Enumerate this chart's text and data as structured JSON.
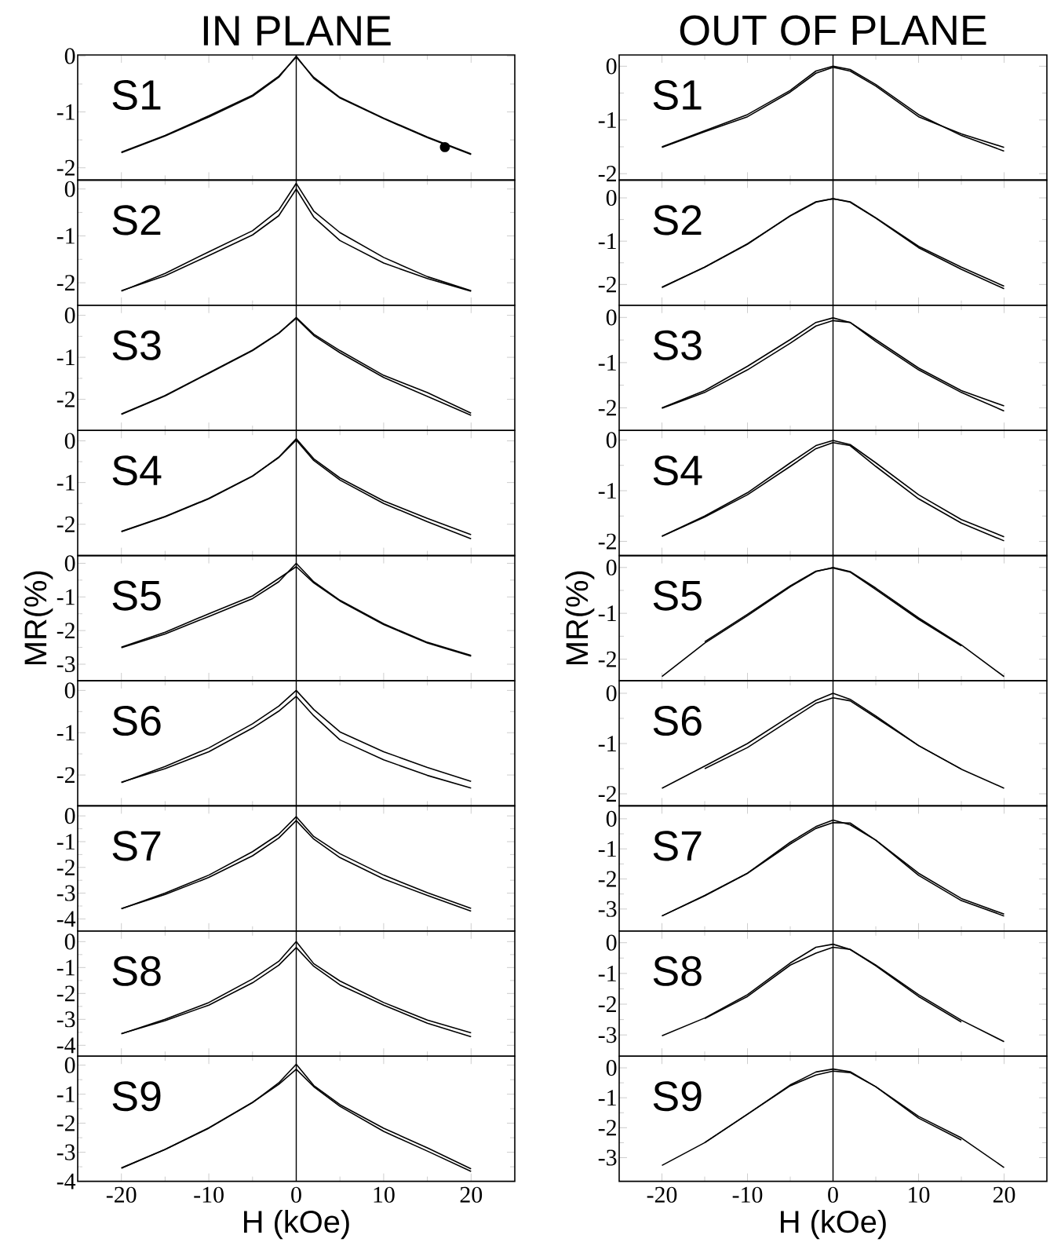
{
  "chart_data": [
    {
      "type": "line",
      "title": "IN PLANE",
      "annotations": [
        "S1"
      ],
      "x": [
        -20,
        -15,
        -10,
        -5,
        -2,
        0,
        2,
        5,
        10,
        15,
        20
      ],
      "xlim": [
        -25,
        25
      ],
      "xticks": [
        -20,
        -10,
        0,
        10,
        20
      ],
      "ylim": [
        -2.22,
        0.02
      ],
      "yticks": [
        -2,
        -1,
        0
      ],
      "tick_labels": "y",
      "line_style": "solid",
      "marker": "none",
      "ref_lines": [
        {
          "axis": "x",
          "value": 0
        }
      ],
      "series": [
        {
          "color": "#000000",
          "values": [
            -1.73,
            -1.43,
            -1.09,
            -0.72,
            -0.38,
            0,
            -0.4,
            -0.75,
            -1.12,
            -1.46,
            -1.76
          ]
        },
        {
          "color": "#000000",
          "values": [
            -1.72,
            -1.42,
            -1.07,
            -0.7,
            -0.36,
            -0.02,
            -0.38,
            -0.74,
            -1.11,
            -1.45,
            -1.75
          ]
        },
        {
          "type": "scatter",
          "marker": "circle",
          "color": "#000000",
          "x": [
            17
          ],
          "values": [
            -1.63
          ]
        }
      ]
    },
    {
      "type": "line",
      "annotations": [
        "S2"
      ],
      "x": [
        -20,
        -15,
        -10,
        -5,
        -2,
        0,
        2,
        5,
        10,
        15,
        20
      ],
      "xlim": [
        -25,
        25
      ],
      "xticks": [
        -20,
        -10,
        0,
        10,
        20
      ],
      "ylim": [
        -2.48,
        0.19
      ],
      "yticks": [
        -2,
        -1,
        0
      ],
      "tick_labels": "y",
      "line_style": "solid",
      "marker": "none",
      "ref_lines": [
        {
          "axis": "x",
          "value": 0
        }
      ],
      "series": [
        {
          "color": "#000000",
          "values": [
            -2.18,
            -1.8,
            -1.34,
            -0.89,
            -0.45,
            0.12,
            -0.47,
            -0.93,
            -1.46,
            -1.87,
            -2.17
          ]
        },
        {
          "color": "#000000",
          "values": [
            -2.17,
            -1.85,
            -1.42,
            -0.98,
            -0.57,
            0,
            -0.6,
            -1.1,
            -1.58,
            -1.91,
            -2.18
          ]
        }
      ]
    },
    {
      "type": "line",
      "annotations": [
        "S3"
      ],
      "x": [
        -20,
        -15,
        -10,
        -5,
        -2,
        0,
        2,
        5,
        10,
        15,
        20
      ],
      "xlim": [
        -25,
        25
      ],
      "xticks": [
        -20,
        -10,
        0,
        10,
        20
      ],
      "ylim": [
        -2.74,
        0.24
      ],
      "yticks": [
        -2,
        -1,
        0
      ],
      "tick_labels": "y",
      "line_style": "solid",
      "marker": "none",
      "ref_lines": [
        {
          "axis": "x",
          "value": 0
        }
      ],
      "series": [
        {
          "color": "#000000",
          "values": [
            -2.36,
            -1.92,
            -1.38,
            -0.84,
            -0.43,
            -0.05,
            -0.45,
            -0.84,
            -1.43,
            -1.84,
            -2.33
          ]
        },
        {
          "color": "#000000",
          "values": [
            -2.35,
            -1.91,
            -1.37,
            -0.83,
            -0.42,
            -0.07,
            -0.48,
            -0.89,
            -1.48,
            -1.93,
            -2.38
          ]
        }
      ]
    },
    {
      "type": "line",
      "annotations": [
        "S4"
      ],
      "x": [
        -20,
        -15,
        -10,
        -5,
        -2,
        0,
        2,
        5,
        10,
        15,
        20
      ],
      "xlim": [
        -25,
        25
      ],
      "xticks": [
        -20,
        -10,
        0,
        10,
        20
      ],
      "ylim": [
        -2.75,
        0.25
      ],
      "yticks": [
        -2,
        -1,
        0
      ],
      "tick_labels": "y",
      "line_style": "solid",
      "marker": "none",
      "ref_lines": [
        {
          "axis": "x",
          "value": 0
        }
      ],
      "series": [
        {
          "color": "#000000",
          "values": [
            -2.18,
            -1.82,
            -1.39,
            -0.85,
            -0.39,
            0.05,
            -0.43,
            -0.89,
            -1.44,
            -1.86,
            -2.25
          ]
        },
        {
          "color": "#000000",
          "values": [
            -2.17,
            -1.81,
            -1.38,
            -0.84,
            -0.4,
            0.02,
            -0.47,
            -0.94,
            -1.5,
            -1.94,
            -2.35
          ]
        }
      ]
    },
    {
      "type": "line",
      "ylabel": "MR(%)",
      "annotations": [
        "S5"
      ],
      "x": [
        -20,
        -15,
        -10,
        -5,
        -2,
        0,
        2,
        5,
        10,
        15,
        20
      ],
      "xlim": [
        -25,
        25
      ],
      "xticks": [
        -20,
        -10,
        0,
        10,
        20
      ],
      "ylim": [
        -3.49,
        0.23
      ],
      "yticks": [
        -3,
        -2,
        -1,
        0
      ],
      "tick_labels": "y",
      "line_style": "solid",
      "marker": "none",
      "ref_lines": [
        {
          "axis": "x",
          "value": 0
        }
      ],
      "series": [
        {
          "color": "#000000",
          "values": [
            -2.51,
            -2.1,
            -1.58,
            -1.05,
            -0.55,
            0,
            -0.55,
            -1.1,
            -1.8,
            -2.35,
            -2.74
          ]
        },
        {
          "color": "#000000",
          "values": [
            -2.49,
            -2.05,
            -1.5,
            -0.97,
            -0.45,
            -0.1,
            -0.58,
            -1.12,
            -1.82,
            -2.37,
            -2.76
          ]
        }
      ]
    },
    {
      "type": "line",
      "annotations": [
        "S6"
      ],
      "x": [
        -20,
        -15,
        -10,
        -5,
        -2,
        0,
        2,
        5,
        10,
        15,
        20
      ],
      "xlim": [
        -25,
        25
      ],
      "xticks": [
        -20,
        -10,
        0,
        10,
        20
      ],
      "ylim": [
        -2.73,
        0.23
      ],
      "yticks": [
        -2,
        -1,
        0
      ],
      "tick_labels": "y",
      "line_style": "solid",
      "marker": "none",
      "ref_lines": [
        {
          "axis": "x",
          "value": 0
        }
      ],
      "series": [
        {
          "color": "#000000",
          "values": [
            -2.18,
            -1.8,
            -1.36,
            -0.79,
            -0.37,
            0,
            -0.45,
            -0.98,
            -1.45,
            -1.82,
            -2.15
          ]
        },
        {
          "color": "#000000",
          "values": [
            -2.17,
            -1.85,
            -1.45,
            -0.89,
            -0.49,
            -0.14,
            -0.6,
            -1.17,
            -1.64,
            -2.01,
            -2.31
          ]
        }
      ]
    },
    {
      "type": "line",
      "annotations": [
        "S7"
      ],
      "x": [
        -20,
        -15,
        -10,
        -5,
        -2,
        0,
        2,
        5,
        10,
        15,
        20
      ],
      "xlim": [
        -25,
        25
      ],
      "xticks": [
        -20,
        -10,
        0,
        10,
        20
      ],
      "ylim": [
        -4.47,
        0.39
      ],
      "yticks": [
        -4,
        -3,
        -2,
        -1,
        0
      ],
      "tick_labels": "y",
      "line_style": "solid",
      "marker": "none",
      "ref_lines": [
        {
          "axis": "x",
          "value": 0
        }
      ],
      "series": [
        {
          "color": "#000000",
          "values": [
            -3.61,
            -3.0,
            -2.3,
            -1.39,
            -0.71,
            -0.03,
            -0.8,
            -1.47,
            -2.3,
            -2.98,
            -3.59
          ]
        },
        {
          "color": "#000000",
          "values": [
            -3.6,
            -3.05,
            -2.39,
            -1.55,
            -0.86,
            -0.18,
            -0.9,
            -1.62,
            -2.45,
            -3.09,
            -3.7
          ]
        }
      ]
    },
    {
      "type": "line",
      "annotations": [
        "S8"
      ],
      "x": [
        -20,
        -15,
        -10,
        -5,
        -2,
        0,
        2,
        5,
        10,
        15,
        20
      ],
      "xlim": [
        -25,
        25
      ],
      "xticks": [
        -20,
        -10,
        0,
        10,
        20
      ],
      "ylim": [
        -4.42,
        0.41
      ],
      "yticks": [
        -4,
        -3,
        -2,
        -1,
        0
      ],
      "tick_labels": "y",
      "line_style": "solid",
      "marker": "none",
      "ref_lines": [
        {
          "axis": "x",
          "value": 0
        }
      ],
      "series": [
        {
          "color": "#000000",
          "values": [
            -3.56,
            -3.0,
            -2.35,
            -1.44,
            -0.76,
            0,
            -0.85,
            -1.52,
            -2.35,
            -3.03,
            -3.52
          ]
        },
        {
          "color": "#000000",
          "values": [
            -3.55,
            -3.05,
            -2.45,
            -1.59,
            -0.91,
            -0.23,
            -0.95,
            -1.67,
            -2.45,
            -3.15,
            -3.67
          ]
        }
      ]
    },
    {
      "type": "line",
      "xlabel": "H (kOe)",
      "annotations": [
        "S9"
      ],
      "x": [
        -20,
        -15,
        -10,
        -5,
        -2,
        0,
        2,
        5,
        10,
        15,
        20
      ],
      "xlim": [
        -25,
        25
      ],
      "xticks": [
        -20,
        -10,
        0,
        10,
        20
      ],
      "ylim": [
        -4,
        0.31
      ],
      "yticks": [
        -4,
        -3,
        -2,
        -1,
        0
      ],
      "line_style": "solid",
      "marker": "none",
      "ref_lines": [
        {
          "axis": "x",
          "value": 0
        }
      ],
      "series": [
        {
          "color": "#000000",
          "values": [
            -3.55,
            -2.9,
            -2.17,
            -1.29,
            -0.61,
            0.03,
            -0.7,
            -1.36,
            -2.17,
            -2.85,
            -3.57
          ]
        },
        {
          "color": "#000000",
          "values": [
            -3.54,
            -2.9,
            -2.16,
            -1.28,
            -0.66,
            -0.14,
            -0.74,
            -1.42,
            -2.28,
            -2.96,
            -3.66
          ]
        }
      ]
    },
    {
      "type": "line",
      "title": "OUT OF PLANE",
      "annotations": [
        "S1"
      ],
      "x": [
        -20,
        -15,
        -10,
        -5,
        -2,
        0,
        2,
        5,
        10,
        15,
        20
      ],
      "xlim": [
        -25,
        25
      ],
      "xticks": [
        -20,
        -10,
        0,
        10,
        20
      ],
      "ylim": [
        -2.12,
        0.21
      ],
      "yticks": [
        -2,
        -1,
        0
      ],
      "tick_labels": "y",
      "line_style": "solid",
      "marker": "none",
      "ref_lines": [
        {
          "axis": "x",
          "value": 0
        }
      ],
      "series": [
        {
          "color": "#000000",
          "values": [
            -1.51,
            -1.22,
            -0.94,
            -0.48,
            -0.13,
            -0.02,
            -0.09,
            -0.37,
            -0.94,
            -1.26,
            -1.51
          ]
        },
        {
          "color": "#000000",
          "values": [
            -1.5,
            -1.2,
            -0.9,
            -0.45,
            -0.09,
            0,
            -0.06,
            -0.34,
            -0.9,
            -1.29,
            -1.58
          ]
        }
      ]
    },
    {
      "type": "line",
      "annotations": [
        "S2"
      ],
      "x": [
        -20,
        -15,
        -10,
        -5,
        -2,
        0,
        2,
        5,
        10,
        15,
        20
      ],
      "xlim": [
        -25,
        25
      ],
      "xticks": [
        -20,
        -10,
        0,
        10,
        20
      ],
      "ylim": [
        -2.48,
        0.41
      ],
      "yticks": [
        -2,
        -1,
        0
      ],
      "tick_labels": "y",
      "line_style": "solid",
      "marker": "none",
      "ref_lines": [
        {
          "axis": "x",
          "value": 0
        }
      ],
      "series": [
        {
          "color": "#000000",
          "values": [
            -2.07,
            -1.6,
            -1.07,
            -0.41,
            -0.09,
            -0.02,
            -0.09,
            -0.46,
            -1.12,
            -1.6,
            -2.04
          ]
        },
        {
          "color": "#000000",
          "values": [
            -2.06,
            -1.6,
            -1.06,
            -0.42,
            -0.1,
            -0.02,
            -0.1,
            -0.47,
            -1.15,
            -1.65,
            -2.1
          ]
        }
      ]
    },
    {
      "type": "line",
      "annotations": [
        "S3"
      ],
      "x": [
        -20,
        -15,
        -10,
        -5,
        -2,
        0,
        2,
        5,
        10,
        15,
        20
      ],
      "xlim": [
        -25,
        25
      ],
      "xticks": [
        -20,
        -10,
        0,
        10,
        20
      ],
      "ylim": [
        -2.5,
        0.27
      ],
      "yticks": [
        -2,
        -1,
        0
      ],
      "tick_labels": "y",
      "line_style": "solid",
      "marker": "none",
      "ref_lines": [
        {
          "axis": "x",
          "value": 0
        }
      ],
      "series": [
        {
          "color": "#000000",
          "values": [
            -2.0,
            -1.62,
            -1.08,
            -0.49,
            -0.11,
            -0.01,
            -0.11,
            -0.49,
            -1.12,
            -1.62,
            -1.96
          ]
        },
        {
          "color": "#000000",
          "values": [
            -2.01,
            -1.66,
            -1.16,
            -0.57,
            -0.19,
            -0.07,
            -0.11,
            -0.53,
            -1.16,
            -1.66,
            -2.07
          ]
        }
      ]
    },
    {
      "type": "line",
      "annotations": [
        "S4"
      ],
      "x": [
        -20,
        -15,
        -10,
        -5,
        -2,
        0,
        2,
        5,
        10,
        15,
        20
      ],
      "xlim": [
        -25,
        25
      ],
      "xticks": [
        -20,
        -10,
        0,
        10,
        20
      ],
      "ylim": [
        -2.28,
        0.19
      ],
      "yticks": [
        -2,
        -1,
        0
      ],
      "tick_labels": "y",
      "line_style": "solid",
      "marker": "none",
      "ref_lines": [
        {
          "axis": "x",
          "value": 0
        }
      ],
      "series": [
        {
          "color": "#000000",
          "values": [
            -1.9,
            -1.5,
            -1.04,
            -0.45,
            -0.11,
            -0.01,
            -0.09,
            -0.45,
            -1.08,
            -1.57,
            -1.91
          ]
        },
        {
          "color": "#000000",
          "values": [
            -1.9,
            -1.52,
            -1.08,
            -0.52,
            -0.17,
            -0.05,
            -0.11,
            -0.52,
            -1.16,
            -1.64,
            -1.99
          ]
        }
      ]
    },
    {
      "type": "line",
      "ylabel": "MR(%)",
      "annotations": [
        "S5"
      ],
      "x": [
        -20,
        -15,
        -10,
        -5,
        -2,
        0,
        2,
        5,
        10,
        15,
        20
      ],
      "xlim": [
        -25,
        25
      ],
      "xticks": [
        -20,
        -10,
        0,
        10,
        20
      ],
      "ylim": [
        -2.47,
        0.26
      ],
      "yticks": [
        -2,
        -1,
        0
      ],
      "tick_labels": "y",
      "line_style": "solid",
      "marker": "none",
      "ref_lines": [
        {
          "axis": "x",
          "value": 0
        }
      ],
      "series": [
        {
          "color": "#000000",
          "values": [
            -2.38,
            -1.65,
            -1.05,
            -0.42,
            -0.09,
            0,
            -0.09,
            -0.45,
            -1.1,
            -1.69,
            -2.38
          ]
        },
        {
          "color": "#000000",
          "values": [
            null,
            -1.62,
            -1.02,
            -0.4,
            -0.08,
            -0.01,
            -0.1,
            -0.48,
            -1.13,
            -1.71,
            null
          ]
        }
      ]
    },
    {
      "type": "line",
      "annotations": [
        "S6"
      ],
      "x": [
        -20,
        -15,
        -10,
        -5,
        -2,
        0,
        2,
        5,
        10,
        15,
        20
      ],
      "xlim": [
        -25,
        25
      ],
      "xticks": [
        -20,
        -10,
        0,
        10,
        20
      ],
      "ylim": [
        -2.24,
        0.25
      ],
      "yticks": [
        -2,
        -1,
        0
      ],
      "tick_labels": "y",
      "line_style": "solid",
      "marker": "none",
      "ref_lines": [
        {
          "axis": "x",
          "value": 0
        }
      ],
      "series": [
        {
          "color": "#000000",
          "values": [
            -1.89,
            -1.45,
            -1.0,
            -0.45,
            -0.14,
            0,
            -0.12,
            -0.45,
            -1.04,
            -1.51,
            -1.89
          ]
        },
        {
          "color": "#000000",
          "values": [
            null,
            -1.5,
            -1.08,
            -0.53,
            -0.2,
            -0.09,
            -0.15,
            -0.48,
            -1.04,
            -1.51,
            null
          ]
        }
      ]
    },
    {
      "type": "line",
      "annotations": [
        "S7"
      ],
      "x": [
        -20,
        -15,
        -10,
        -5,
        -2,
        0,
        2,
        5,
        10,
        15,
        20
      ],
      "xlim": [
        -25,
        25
      ],
      "xticks": [
        -20,
        -10,
        0,
        10,
        20
      ],
      "ylim": [
        -3.73,
        0.43
      ],
      "yticks": [
        -3,
        -2,
        -1,
        0
      ],
      "tick_labels": "y",
      "line_style": "solid",
      "marker": "none",
      "ref_lines": [
        {
          "axis": "x",
          "value": 0
        }
      ],
      "series": [
        {
          "color": "#000000",
          "values": [
            -3.23,
            -2.55,
            -1.81,
            -0.78,
            -0.26,
            -0.04,
            -0.2,
            -0.71,
            -1.81,
            -2.65,
            -3.17
          ]
        },
        {
          "color": "#000000",
          "values": [
            -3.23,
            -2.56,
            -1.81,
            -0.84,
            -0.32,
            -0.13,
            -0.14,
            -0.71,
            -1.88,
            -2.72,
            -3.23
          ]
        }
      ]
    },
    {
      "type": "line",
      "annotations": [
        "S8"
      ],
      "x": [
        -20,
        -15,
        -10,
        -5,
        -2,
        0,
        2,
        5,
        10,
        15,
        20
      ],
      "xlim": [
        -25,
        25
      ],
      "xticks": [
        -20,
        -10,
        0,
        10,
        20
      ],
      "ylim": [
        -3.69,
        0.38
      ],
      "yticks": [
        -3,
        -2,
        -1,
        0
      ],
      "tick_labels": "y",
      "line_style": "solid",
      "marker": "none",
      "ref_lines": [
        {
          "axis": "x",
          "value": 0
        }
      ],
      "series": [
        {
          "color": "#000000",
          "values": [
            -3.03,
            -2.45,
            -1.69,
            -0.66,
            -0.15,
            -0.05,
            -0.22,
            -0.73,
            -1.69,
            -2.52,
            -3.22
          ]
        },
        {
          "color": "#000000",
          "values": [
            null,
            -2.47,
            -1.75,
            -0.73,
            -0.34,
            -0.15,
            -0.22,
            -0.75,
            -1.75,
            -2.58,
            null
          ]
        }
      ]
    },
    {
      "type": "line",
      "xlabel": "H (kOe)",
      "annotations": [
        "S9"
      ],
      "x": [
        -20,
        -15,
        -10,
        -5,
        -2,
        0,
        2,
        5,
        10,
        15,
        20
      ],
      "xlim": [
        -25,
        25
      ],
      "xticks": [
        -20,
        -10,
        0,
        10,
        20
      ],
      "ylim": [
        -3.79,
        0.39
      ],
      "yticks": [
        -3,
        -2,
        -1,
        0
      ],
      "line_style": "solid",
      "marker": "none",
      "ref_lines": [
        {
          "axis": "x",
          "value": 0
        }
      ],
      "series": [
        {
          "color": "#000000",
          "values": [
            -3.26,
            -2.5,
            -1.55,
            -0.57,
            -0.14,
            -0.04,
            -0.13,
            -0.63,
            -1.62,
            -2.34,
            -3.33
          ]
        },
        {
          "color": "#000000",
          "values": [
            null,
            -2.5,
            -1.55,
            -0.6,
            -0.24,
            -0.11,
            -0.16,
            -0.63,
            -1.68,
            -2.41,
            null
          ]
        }
      ]
    }
  ]
}
